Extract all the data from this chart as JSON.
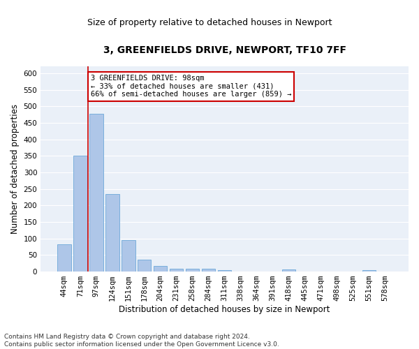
{
  "title_line1": "3, GREENFIELDS DRIVE, NEWPORT, TF10 7FF",
  "title_line2": "Size of property relative to detached houses in Newport",
  "xlabel": "Distribution of detached houses by size in Newport",
  "ylabel": "Number of detached properties",
  "bar_labels": [
    "44sqm",
    "71sqm",
    "97sqm",
    "124sqm",
    "151sqm",
    "178sqm",
    "204sqm",
    "231sqm",
    "258sqm",
    "284sqm",
    "311sqm",
    "338sqm",
    "364sqm",
    "391sqm",
    "418sqm",
    "445sqm",
    "471sqm",
    "498sqm",
    "525sqm",
    "551sqm",
    "578sqm"
  ],
  "bar_values": [
    83,
    350,
    478,
    235,
    95,
    37,
    17,
    8,
    8,
    8,
    5,
    0,
    0,
    0,
    6,
    0,
    0,
    0,
    0,
    5,
    0
  ],
  "bar_color": "#aec6e8",
  "bar_edge_color": "#5a9fd4",
  "vline_color": "#cc0000",
  "vline_x_index": 2,
  "ylim": [
    0,
    620
  ],
  "yticks": [
    0,
    50,
    100,
    150,
    200,
    250,
    300,
    350,
    400,
    450,
    500,
    550,
    600
  ],
  "annotation_text": "3 GREENFIELDS DRIVE: 98sqm\n← 33% of detached houses are smaller (431)\n66% of semi-detached houses are larger (859) →",
  "annotation_box_color": "#ffffff",
  "annotation_box_edgecolor": "#cc0000",
  "footer_line1": "Contains HM Land Registry data © Crown copyright and database right 2024.",
  "footer_line2": "Contains public sector information licensed under the Open Government Licence v3.0.",
  "bg_color": "#eaf0f8",
  "grid_color": "#ffffff",
  "fig_bg_color": "#ffffff",
  "title_fontsize": 10,
  "subtitle_fontsize": 9,
  "tick_fontsize": 7.5,
  "ylabel_fontsize": 8.5,
  "xlabel_fontsize": 8.5,
  "annotation_fontsize": 7.5,
  "footer_fontsize": 6.5
}
